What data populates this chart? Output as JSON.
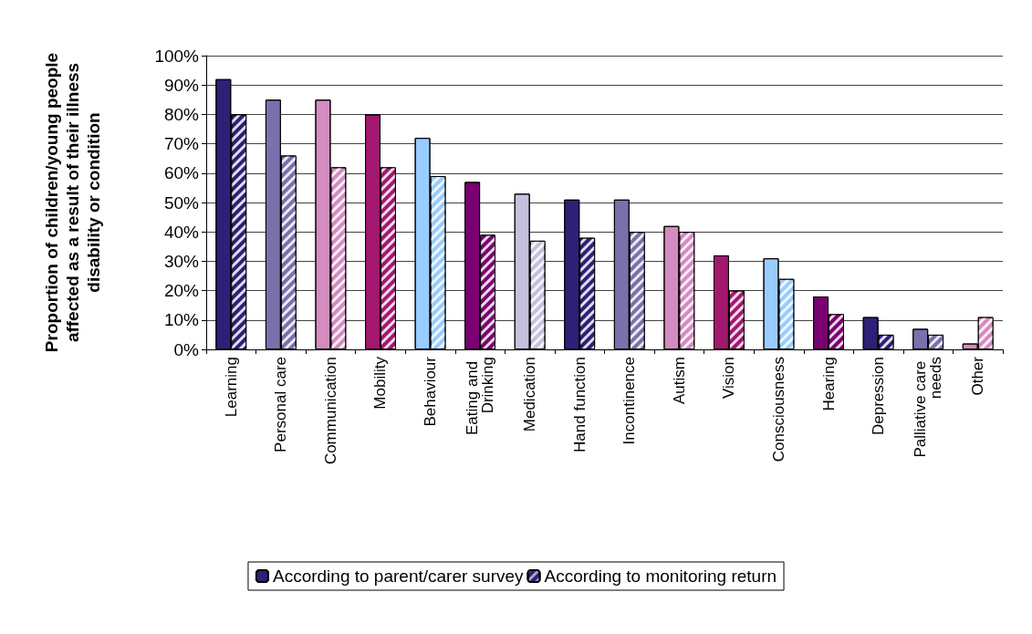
{
  "chart_data": {
    "type": "bar",
    "ylabel": "Proportion of children/young people affected as a result of their illness disability or condition",
    "categories": [
      "Learning",
      "Personal care",
      "Communication",
      "Mobility",
      "Behaviour",
      "Eating and Drinking",
      "Medication",
      "Hand function",
      "Incontinence",
      "Autism",
      "Vision",
      "Consciousness",
      "Hearing",
      "Depression",
      "Palliative care needs",
      "Other"
    ],
    "series": [
      {
        "name": "According to parent/carer survey",
        "color": "#2e2078",
        "colors": [
          "#2e2078",
          "#7b70ab",
          "#d48bbf",
          "#a3186f",
          "#99ccff",
          "#7a0071",
          "#c4c0de",
          "#2e2078",
          "#7b70ab",
          "#d48bbf",
          "#a3186f",
          "#99ccff",
          "#7a0071",
          "#2e2078",
          "#7b70ab",
          "#d48bbf"
        ],
        "values": [
          92,
          85,
          85,
          80,
          72,
          57,
          53,
          51,
          51,
          42,
          32,
          31,
          18,
          11,
          7,
          2
        ]
      },
      {
        "name": "According to monitoring return",
        "color": "#2e2078",
        "colors": [
          "#2e2078",
          "#7b70ab",
          "#d48bbf",
          "#a3186f",
          "#99ccff",
          "#7a0071",
          "#c4c0de",
          "#2e2078",
          "#7b70ab",
          "#d48bbf",
          "#a3186f",
          "#99ccff",
          "#7a0071",
          "#2e2078",
          "#7b70ab",
          "#d48bbf"
        ],
        "values": [
          80,
          66,
          62,
          62,
          59,
          39,
          37,
          38,
          40,
          40,
          20,
          24,
          12,
          5,
          5,
          11
        ]
      }
    ],
    "ylim": [
      0,
      100
    ],
    "yticks": [
      {
        "value": 0,
        "label": "0%"
      },
      {
        "value": 10,
        "label": "10%"
      },
      {
        "value": 20,
        "label": "20%"
      },
      {
        "value": 30,
        "label": "30%"
      },
      {
        "value": 40,
        "label": "40%"
      },
      {
        "value": 50,
        "label": "50%"
      },
      {
        "value": 60,
        "label": "60%"
      },
      {
        "value": 70,
        "label": "70%"
      },
      {
        "value": 80,
        "label": "80%"
      },
      {
        "value": 90,
        "label": "90%"
      },
      {
        "value": 100,
        "label": "100%"
      }
    ],
    "grid": "y",
    "legend": "bottom"
  }
}
